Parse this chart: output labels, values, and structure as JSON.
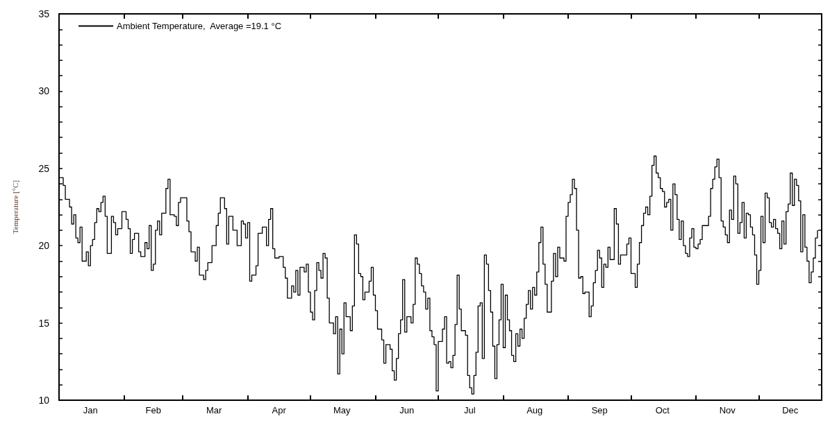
{
  "chart_data": {
    "type": "step",
    "ylabel": "Temperature [°C]",
    "xlim": [
      "--01-01",
      "--12-31"
    ],
    "xticks": [
      {
        "value": "--01-16",
        "label": "Jan"
      },
      {
        "value": "--02-01",
        "label": null
      },
      {
        "value": "--02-15",
        "label": "Feb"
      },
      {
        "value": "--03-01",
        "label": null
      },
      {
        "value": "--03-16",
        "label": "Mar"
      },
      {
        "value": "--04-01",
        "label": null
      },
      {
        "value": "--04-16",
        "label": "Apr"
      },
      {
        "value": "--05-01",
        "label": null
      },
      {
        "value": "--05-16",
        "label": "May"
      },
      {
        "value": "--06-01",
        "label": null
      },
      {
        "value": "--06-16",
        "label": "Jun"
      },
      {
        "value": "--07-01",
        "label": null
      },
      {
        "value": "--07-16",
        "label": "Jul"
      },
      {
        "value": "--08-01",
        "label": null
      },
      {
        "value": "--08-16",
        "label": "Aug"
      },
      {
        "value": "--09-01",
        "label": null
      },
      {
        "value": "--09-16",
        "label": "Sep"
      },
      {
        "value": "--10-01",
        "label": null
      },
      {
        "value": "--10-16",
        "label": "Oct"
      },
      {
        "value": "--11-01",
        "label": null
      },
      {
        "value": "--11-16",
        "label": "Nov"
      },
      {
        "value": "--12-01",
        "label": null
      },
      {
        "value": "--12-16",
        "label": "Dec"
      }
    ],
    "ylim": [
      10,
      35
    ],
    "yticks": [
      10,
      {
        "value": 11,
        "label": null
      },
      {
        "value": 12,
        "label": null
      },
      {
        "value": 13,
        "label": null
      },
      {
        "value": 14,
        "label": null
      },
      15,
      {
        "value": 16,
        "label": null
      },
      {
        "value": 17,
        "label": null
      },
      {
        "value": 18,
        "label": null
      },
      {
        "value": 19,
        "label": null
      },
      20,
      {
        "value": 21,
        "label": null
      },
      {
        "value": 22,
        "label": null
      },
      {
        "value": 23,
        "label": null
      },
      {
        "value": 24,
        "label": null
      },
      25,
      {
        "value": 26,
        "label": null
      },
      {
        "value": 27,
        "label": null
      },
      {
        "value": 28,
        "label": null
      },
      {
        "value": 29,
        "label": null
      },
      30,
      {
        "value": 31,
        "label": null
      },
      {
        "value": 32,
        "label": null
      },
      {
        "value": 33,
        "label": null
      },
      {
        "value": 34,
        "label": null
      },
      35
    ],
    "grid": false,
    "legend": "top left",
    "marker": "none",
    "line_style": "solid",
    "series": [
      {
        "name": "Ambient Temperature,  Average =19.1 °C",
        "color": "#000000",
        "x": [
          "--01-01",
          "--01-03",
          "--01-04",
          "--01-06",
          "--01-07",
          "--01-08",
          "--01-09",
          "--01-10",
          "--01-11",
          "--01-12",
          "--01-14",
          "--01-15",
          "--01-16",
          "--01-17",
          "--01-18",
          "--01-19",
          "--01-20",
          "--01-21",
          "--01-22",
          "--01-23",
          "--01-24",
          "--01-26",
          "--01-27",
          "--01-28",
          "--01-29",
          "--01-31",
          "--02-02",
          "--02-03",
          "--02-04",
          "--02-05",
          "--02-06",
          "--02-08",
          "--02-09",
          "--02-11",
          "--02-12",
          "--02-13",
          "--02-14",
          "--02-15",
          "--02-16",
          "--02-17",
          "--02-18",
          "--02-19",
          "--02-21",
          "--02-22",
          "--02-23",
          "--02-25",
          "--02-26",
          "--02-27",
          "--02-28",
          "--03-03",
          "--03-04",
          "--03-05",
          "--03-07",
          "--03-08",
          "--03-09",
          "--03-11",
          "--03-12",
          "--03-13",
          "--03-15",
          "--03-17",
          "--03-18",
          "--03-19",
          "--03-21",
          "--03-22",
          "--03-23",
          "--03-25",
          "--03-27",
          "--03-29",
          "--03-30",
          "--03-31",
          "--04-01",
          "--04-02",
          "--04-03",
          "--04-05",
          "--04-06",
          "--04-08",
          "--04-10",
          "--04-11",
          "--04-12",
          "--04-13",
          "--04-14",
          "--04-16",
          "--04-18",
          "--04-19",
          "--04-20",
          "--04-22",
          "--04-23",
          "--04-24",
          "--04-25",
          "--04-26",
          "--04-28",
          "--04-29",
          "--04-30",
          "--05-01",
          "--05-02",
          "--05-03",
          "--05-04",
          "--05-05",
          "--05-06",
          "--05-07",
          "--05-08",
          "--05-09",
          "--05-10",
          "--05-12",
          "--05-13",
          "--05-14",
          "--05-15",
          "--05-16",
          "--05-17",
          "--05-18",
          "--05-20",
          "--05-21",
          "--05-22",
          "--05-23",
          "--05-24",
          "--05-25",
          "--05-26",
          "--05-27",
          "--05-29",
          "--05-30",
          "--05-31",
          "--06-01",
          "--06-02",
          "--06-04",
          "--06-05",
          "--06-06",
          "--06-08",
          "--06-09",
          "--06-10",
          "--06-11",
          "--06-12",
          "--06-13",
          "--06-14",
          "--06-15",
          "--06-16",
          "--06-18",
          "--06-19",
          "--06-20",
          "--06-21",
          "--06-22",
          "--06-23",
          "--06-24",
          "--06-25",
          "--06-26",
          "--06-27",
          "--06-28",
          "--06-29",
          "--06-30",
          "--07-01",
          "--07-03",
          "--07-04",
          "--07-05",
          "--07-06",
          "--07-07",
          "--07-08",
          "--07-09",
          "--07-10",
          "--07-11",
          "--07-12",
          "--07-14",
          "--07-15",
          "--07-16",
          "--07-17",
          "--07-18",
          "--07-19",
          "--07-20",
          "--07-21",
          "--07-22",
          "--07-23",
          "--07-24",
          "--07-25",
          "--07-26",
          "--07-27",
          "--07-28",
          "--07-29",
          "--07-30",
          "--07-31",
          "--08-01",
          "--08-02",
          "--08-03",
          "--08-04",
          "--08-05",
          "--08-06",
          "--08-07",
          "--08-08",
          "--08-09",
          "--08-10",
          "--08-11",
          "--08-12",
          "--08-13",
          "--08-14",
          "--08-15",
          "--08-16",
          "--08-17",
          "--08-18",
          "--08-19",
          "--08-20",
          "--08-21",
          "--08-22",
          "--08-24",
          "--08-25",
          "--08-26",
          "--08-27",
          "--08-28",
          "--08-30",
          "--08-31",
          "--09-01",
          "--09-02",
          "--09-03",
          "--09-04",
          "--09-05",
          "--09-06",
          "--09-07",
          "--09-08",
          "--09-09",
          "--09-11",
          "--09-12",
          "--09-13",
          "--09-14",
          "--09-15",
          "--09-16",
          "--09-17",
          "--09-18",
          "--09-19",
          "--09-20",
          "--09-21",
          "--09-23",
          "--09-24",
          "--09-25",
          "--09-26",
          "--09-29",
          "--09-30",
          "--10-01",
          "--10-03",
          "--10-04",
          "--10-05",
          "--10-06",
          "--10-07",
          "--10-08",
          "--10-09",
          "--10-10",
          "--10-11",
          "--10-12",
          "--10-13",
          "--10-14",
          "--10-15",
          "--10-16",
          "--10-17",
          "--10-18",
          "--10-19",
          "--10-20",
          "--10-21",
          "--10-22",
          "--10-23",
          "--10-24",
          "--10-25",
          "--10-26",
          "--10-27",
          "--10-28",
          "--10-29",
          "--10-30",
          "--10-31",
          "--11-01",
          "--11-02",
          "--11-03",
          "--11-04",
          "--11-07",
          "--11-08",
          "--11-09",
          "--11-10",
          "--11-11",
          "--11-12",
          "--11-13",
          "--11-14",
          "--11-15",
          "--11-16",
          "--11-17",
          "--11-18",
          "--11-19",
          "--11-20",
          "--11-21",
          "--11-22",
          "--11-23",
          "--11-24",
          "--11-25",
          "--11-26",
          "--11-27",
          "--11-28",
          "--11-29",
          "--11-30",
          "--12-01",
          "--12-02",
          "--12-03",
          "--12-04",
          "--12-05",
          "--12-06",
          "--12-07",
          "--12-08",
          "--12-09",
          "--12-10",
          "--12-11",
          "--12-12",
          "--12-13",
          "--12-14",
          "--12-15",
          "--12-16",
          "--12-17",
          "--12-18",
          "--12-19",
          "--12-20",
          "--12-21",
          "--12-22",
          "--12-23",
          "--12-24",
          "--12-25",
          "--12-26",
          "--12-27",
          "--12-28",
          "--12-29"
        ],
        "values": [
          24.4,
          23.9,
          23.0,
          22.5,
          21.4,
          22.0,
          20.5,
          20.2,
          21.2,
          19.0,
          19.6,
          18.7,
          20.0,
          20.4,
          21.5,
          22.4,
          22.2,
          22.8,
          23.2,
          21.9,
          19.5,
          21.9,
          21.5,
          20.7,
          21.1,
          22.2,
          21.7,
          21.1,
          19.5,
          20.4,
          20.8,
          19.6,
          19.3,
          20.2,
          19.8,
          21.3,
          18.4,
          18.8,
          21.0,
          21.6,
          20.7,
          22.1,
          23.7,
          24.3,
          22.0,
          21.9,
          21.3,
          22.8,
          23.1,
          21.6,
          20.9,
          19.6,
          19.0,
          19.9,
          18.1,
          17.8,
          18.4,
          18.9,
          20.0,
          21.3,
          22.1,
          23.1,
          22.4,
          20.1,
          21.9,
          21.0,
          20.0,
          21.6,
          21.4,
          20.5,
          21.5,
          17.7,
          18.1,
          18.7,
          20.8,
          21.2,
          20.0,
          21.7,
          22.4,
          19.8,
          19.2,
          19.3,
          18.6,
          17.9,
          16.6,
          17.4,
          17.0,
          18.4,
          16.8,
          18.6,
          18.3,
          18.8,
          17.0,
          15.7,
          15.2,
          17.1,
          18.9,
          18.4,
          17.9,
          19.5,
          19.2,
          16.6,
          15.0,
          14.3,
          15.4,
          11.7,
          14.6,
          13.0,
          16.3,
          15.4,
          14.5,
          16.1,
          20.7,
          20.1,
          18.2,
          18.0,
          16.5,
          17.0,
          17.7,
          18.6,
          16.8,
          15.8,
          14.6,
          13.9,
          12.4,
          13.6,
          13.3,
          11.9,
          11.3,
          12.7,
          14.3,
          15.2,
          17.8,
          14.4,
          15.4,
          15.0,
          16.2,
          19.2,
          18.8,
          18.2,
          17.4,
          17.0,
          15.9,
          16.6,
          14.5,
          14.1,
          13.6,
          10.6,
          13.8,
          14.6,
          15.4,
          12.4,
          12.5,
          12.1,
          12.9,
          14.9,
          18.1,
          15.9,
          14.5,
          14.2,
          11.6,
          10.8,
          10.4,
          11.6,
          13.1,
          16.1,
          16.3,
          12.7,
          19.4,
          18.8,
          17.1,
          15.7,
          13.5,
          11.4,
          13.6,
          15.2,
          17.5,
          13.4,
          16.8,
          15.2,
          14.5,
          12.9,
          12.5,
          14.3,
          13.5,
          14.6,
          14.0,
          15.3,
          16.2,
          17.1,
          15.9,
          17.3,
          16.8,
          18.3,
          20.2,
          21.2,
          18.8,
          17.5,
          15.7,
          17.7,
          19.5,
          18.0,
          19.9,
          19.2,
          19.0,
          21.9,
          22.8,
          23.3,
          24.3,
          23.7,
          21.0,
          17.9,
          18.0,
          16.9,
          17.0,
          15.4,
          16.1,
          17.6,
          18.4,
          19.7,
          19.2,
          17.3,
          18.8,
          18.6,
          19.9,
          19.1,
          22.4,
          21.4,
          18.8,
          19.4,
          20.1,
          20.5,
          18.2,
          17.3,
          18.8,
          20.2,
          21.3,
          22.1,
          22.5,
          22.0,
          23.2,
          25.2,
          25.8,
          24.7,
          24.4,
          23.7,
          23.5,
          22.5,
          22.8,
          23.0,
          21.0,
          24.0,
          23.3,
          21.7,
          20.4,
          21.6,
          20.0,
          19.5,
          19.3,
          20.5,
          21.1,
          19.9,
          19.8,
          20.1,
          20.4,
          21.3,
          21.9,
          23.7,
          24.3,
          25.1,
          25.6,
          24.4,
          21.6,
          21.2,
          20.7,
          20.2,
          22.3,
          21.7,
          24.5,
          24.0,
          20.8,
          21.5,
          22.8,
          20.5,
          22.1,
          22.0,
          21.2,
          20.7,
          19.4,
          17.5,
          18.4,
          21.9,
          20.2,
          23.4,
          23.1,
          21.5,
          21.2,
          21.7,
          21.1,
          20.8,
          19.8,
          21.6,
          20.1,
          22.2,
          22.7,
          24.7,
          22.6,
          24.3,
          23.9,
          22.9,
          19.6,
          22.0,
          19.9,
          19.0,
          17.6,
          18.3,
          19.2,
          20.5,
          21.0
        ]
      }
    ]
  }
}
